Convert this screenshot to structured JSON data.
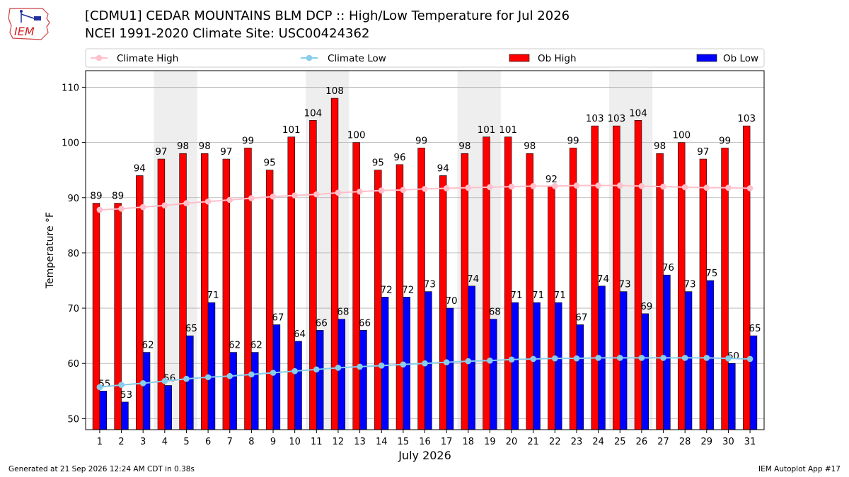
{
  "header": {
    "title_line1": "[CDMU1] CEDAR MOUNTAINS BLM DCP :: High/Low Temperature for Jul 2026",
    "title_line2": "NCEI 1991-2020 Climate Site: USC00424362",
    "logo_text": "IEM"
  },
  "footer": {
    "generated": "Generated at 21 Sep 2026 12:24 AM CDT in 0.38s",
    "app": "IEM Autoplot App #17"
  },
  "colors": {
    "ob_high": "#ff0000",
    "ob_low": "#0000ff",
    "climate_high": "#ffc0cb",
    "climate_low": "#87ceeb",
    "weekend_shade": "#eeeeee",
    "grid": "#b0b0b0"
  },
  "chart_data": {
    "type": "bar",
    "title": "[CDMU1] CEDAR MOUNTAINS BLM DCP :: High/Low Temperature for Jul 2026",
    "xlabel": "July 2026",
    "ylabel": "Temperature °F",
    "ylim": [
      48,
      113
    ],
    "yticks": [
      50,
      60,
      70,
      80,
      90,
      100,
      110
    ],
    "grid": true,
    "legend_position": "top",
    "legend": [
      "Climate High",
      "Climate Low",
      "Ob High",
      "Ob Low"
    ],
    "categories": [
      "1",
      "2",
      "3",
      "4",
      "5",
      "6",
      "7",
      "8",
      "9",
      "10",
      "11",
      "12",
      "13",
      "14",
      "15",
      "16",
      "17",
      "18",
      "19",
      "20",
      "21",
      "22",
      "23",
      "24",
      "25",
      "26",
      "27",
      "28",
      "29",
      "30",
      "31"
    ],
    "shaded_days": [
      [
        4,
        5
      ],
      [
        11,
        12
      ],
      [
        18,
        19
      ],
      [
        25,
        26
      ]
    ],
    "series": [
      {
        "name": "Ob High",
        "kind": "bar",
        "values": [
          89,
          89,
          94,
          97,
          98,
          98,
          97,
          99,
          95,
          101,
          104,
          108,
          100,
          95,
          96,
          99,
          94,
          98,
          101,
          101,
          98,
          92,
          99,
          103,
          103,
          104,
          98,
          100,
          97,
          99,
          103
        ]
      },
      {
        "name": "Ob Low",
        "kind": "bar",
        "values": [
          55,
          53,
          62,
          56,
          65,
          71,
          62,
          62,
          67,
          64,
          66,
          68,
          66,
          72,
          72,
          73,
          70,
          74,
          68,
          71,
          71,
          71,
          67,
          74,
          73,
          69,
          76,
          73,
          75,
          60,
          65
        ]
      },
      {
        "name": "Climate High",
        "kind": "line",
        "values": [
          87.8,
          88.0,
          88.3,
          88.6,
          89.0,
          89.3,
          89.6,
          89.9,
          90.2,
          90.4,
          90.6,
          90.9,
          91.1,
          91.3,
          91.4,
          91.6,
          91.7,
          91.8,
          91.9,
          92.0,
          92.1,
          92.1,
          92.2,
          92.2,
          92.2,
          92.1,
          92.0,
          91.9,
          91.8,
          91.8,
          91.7
        ]
      },
      {
        "name": "Climate Low",
        "kind": "line",
        "values": [
          55.7,
          56.1,
          56.4,
          56.8,
          57.2,
          57.5,
          57.7,
          58.0,
          58.3,
          58.6,
          58.9,
          59.2,
          59.4,
          59.6,
          59.8,
          60.0,
          60.2,
          60.4,
          60.5,
          60.7,
          60.8,
          60.9,
          60.9,
          61.0,
          61.0,
          61.0,
          61.0,
          61.0,
          61.0,
          60.9,
          60.8
        ]
      }
    ]
  }
}
